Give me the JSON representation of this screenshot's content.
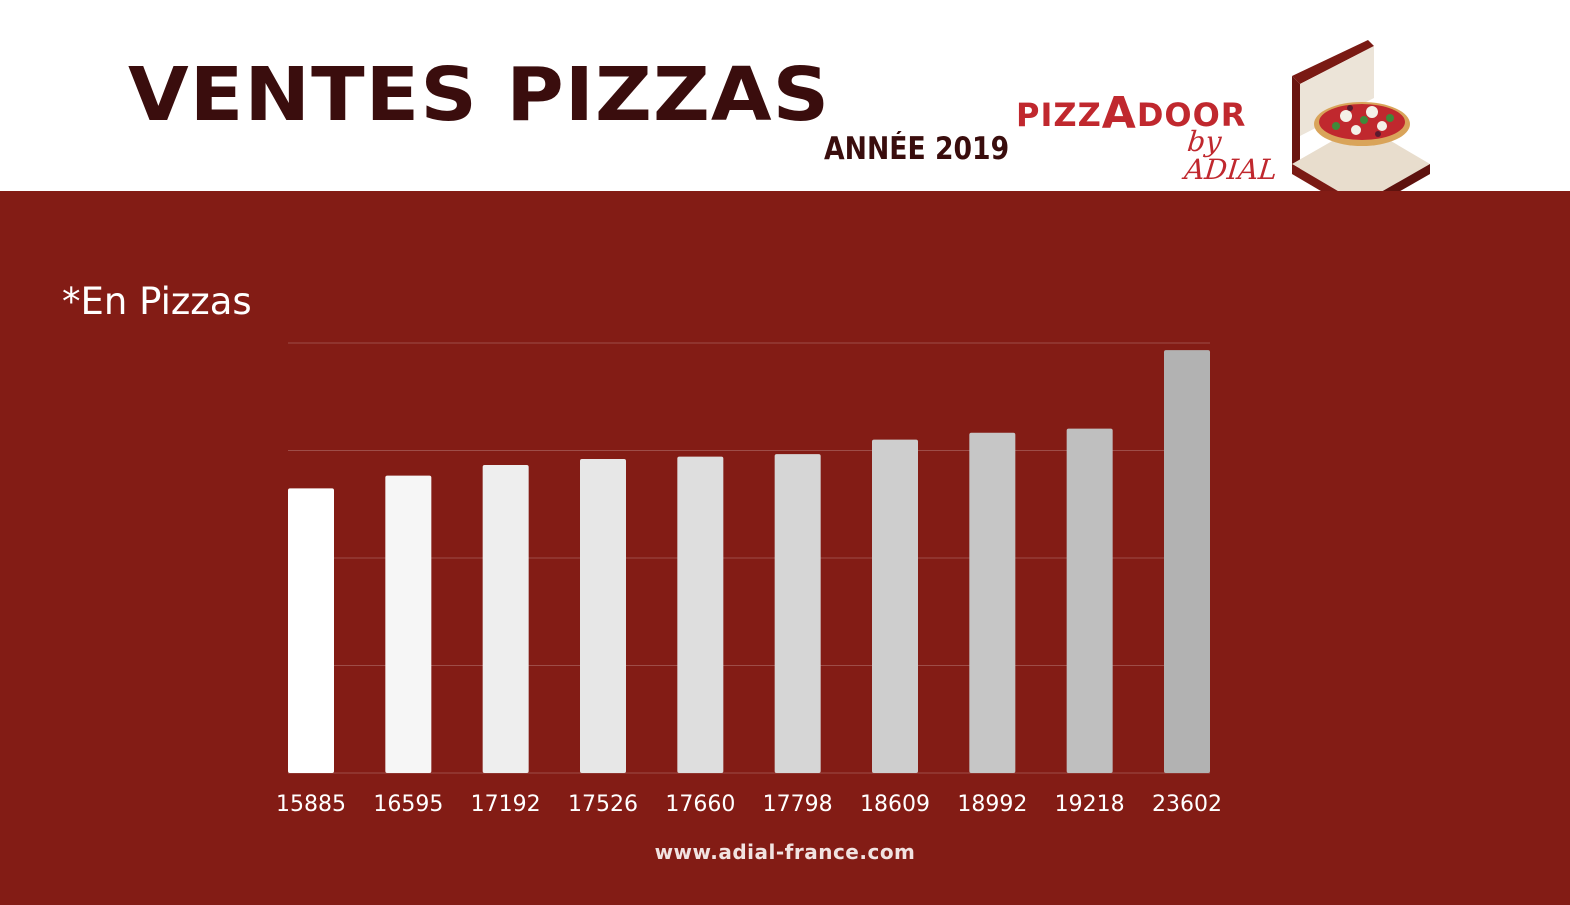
{
  "header": {
    "title": "VENTES PIZZAS",
    "subtitle": "ANNÉE 2019"
  },
  "logo": {
    "brand_left": "PIZZ",
    "brand_mid": "A",
    "brand_right": "DOOR",
    "brand_sub": "by ADIAL",
    "icon": "pizza-box-icon"
  },
  "colors": {
    "panel_background": "#831c15",
    "title": "#3a0d0d",
    "brand": "#c0282e"
  },
  "chart_data": {
    "type": "bar",
    "unit_label": "*En Pizzas",
    "categories": [
      "15885",
      "16595",
      "17192",
      "17526",
      "17660",
      "17798",
      "18609",
      "18992",
      "19218",
      "23602"
    ],
    "values": [
      15885,
      16595,
      17192,
      17526,
      17660,
      17798,
      18609,
      18992,
      19218,
      23602
    ],
    "ylim": [
      0,
      24000
    ],
    "gridlines": [
      0,
      6000,
      12000,
      18000,
      24000
    ],
    "grid": true,
    "legend": "none",
    "bar_colors": [
      "#ffffff",
      "#f6f6f6",
      "#eeeeee",
      "#e7e7e7",
      "#dedede",
      "#d6d6d6",
      "#cecece",
      "#c6c6c6",
      "#bfbfbf",
      "#b2b2b2"
    ]
  },
  "footer": {
    "url": "www.adial-france.com"
  }
}
